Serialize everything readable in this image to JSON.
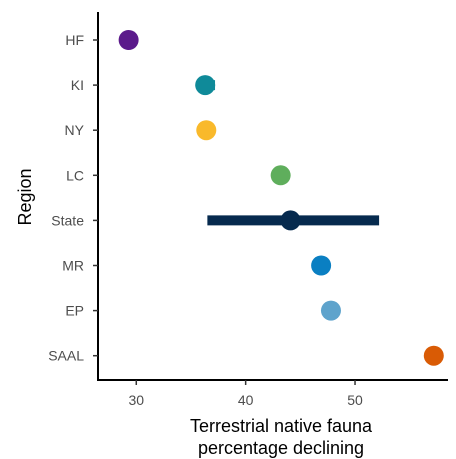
{
  "chart_data": {
    "type": "scatter",
    "xlabel_lines": [
      "Terrestrial native fauna",
      "percentage declining"
    ],
    "ylabel": "Region",
    "xlim": [
      26.5,
      58.5
    ],
    "xticks": [
      30,
      40,
      50
    ],
    "xtick_labels": [
      "30",
      "40",
      "50"
    ],
    "grid": false,
    "legend": "none",
    "points": [
      {
        "region": "HF",
        "value": 29.3,
        "low": 29.3,
        "high": 29.3,
        "color": "#5b1a8b"
      },
      {
        "region": "KI",
        "value": 36.3,
        "low": 35.6,
        "high": 37.2,
        "color": "#0f8a99"
      },
      {
        "region": "NY",
        "value": 36.4,
        "low": 36.4,
        "high": 36.4,
        "color": "#f9b92b"
      },
      {
        "region": "LC",
        "value": 43.2,
        "low": 43.2,
        "high": 43.2,
        "color": "#5fae5c"
      },
      {
        "region": "State",
        "value": 44.1,
        "low": 36.5,
        "high": 52.2,
        "color": "#062a4e"
      },
      {
        "region": "MR",
        "value": 46.9,
        "low": 46.9,
        "high": 46.9,
        "color": "#0a7fc2"
      },
      {
        "region": "EP",
        "value": 47.8,
        "low": 47.4,
        "high": 48.2,
        "color": "#5ea3cc"
      },
      {
        "region": "SAAL",
        "value": 57.2,
        "low": 57.2,
        "high": 57.2,
        "color": "#d95b05"
      }
    ]
  }
}
